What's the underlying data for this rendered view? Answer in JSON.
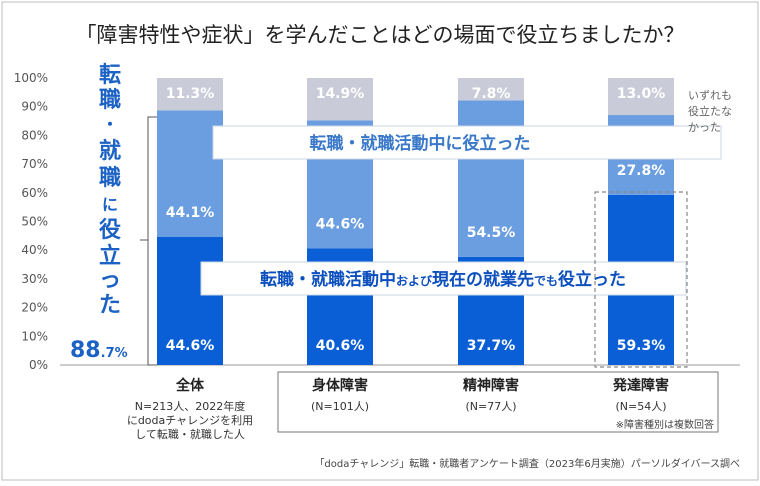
{
  "chart_data": {
    "type": "bar",
    "stacked": true,
    "title": "「障害特性や症状」を学んだことはどの場面で役立ちましたか？",
    "ylim": [
      0,
      100
    ],
    "yticks": [
      "0%",
      "10%",
      "20%",
      "30%",
      "40%",
      "50%",
      "60%",
      "70%",
      "80%",
      "90%",
      "100%"
    ],
    "categories": [
      "全体",
      "身体障害",
      "精神障害",
      "発達障害"
    ],
    "category_notes": [
      "N=213人、2022年度|にdodaチャレンジを利用|して転職・就職した人",
      "(N=101人)",
      "(N=77人)",
      "(N=54人)"
    ],
    "series": [
      {
        "name": "転職・就職活動中および現在の就業先でも役立った",
        "color": "#0b5fd6",
        "values": [
          44.6,
          40.6,
          37.7,
          59.3
        ],
        "labels": [
          "44.6%",
          "40.6%",
          "37.7%",
          "59.3%"
        ]
      },
      {
        "name": "転職・就職活動中に役立った",
        "color": "#6b9ee0",
        "values": [
          44.1,
          44.6,
          54.5,
          27.8
        ],
        "labels": [
          "44.1%",
          "44.6%",
          "54.5%",
          "27.8%"
        ]
      },
      {
        "name": "いずれも役立たなかった",
        "color": "#c9ccd8",
        "values": [
          11.3,
          14.9,
          7.8,
          13.0
        ],
        "labels": [
          "11.3%",
          "14.9%",
          "7.8%",
          "13.0%"
        ]
      }
    ],
    "callouts": {
      "upper": "転職・就職活動中に役立った",
      "lower_parts": [
        "転職・就職活動中",
        "および",
        "現在の就業先",
        "でも",
        "役立った"
      ],
      "none": "いずれも|役立たな|かった"
    },
    "total_label": {
      "vertical": [
        "転",
        "職",
        "・",
        "就",
        "職",
        "に",
        "役",
        "立",
        "っ",
        "た"
      ],
      "value": "88",
      "decimal": ".7%"
    },
    "footnote": "※障害種別は複数回答",
    "source": "「dodaチャレンジ」転職・就職者アンケート調査（2023年6月実施）パーソルダイバース調べ"
  }
}
